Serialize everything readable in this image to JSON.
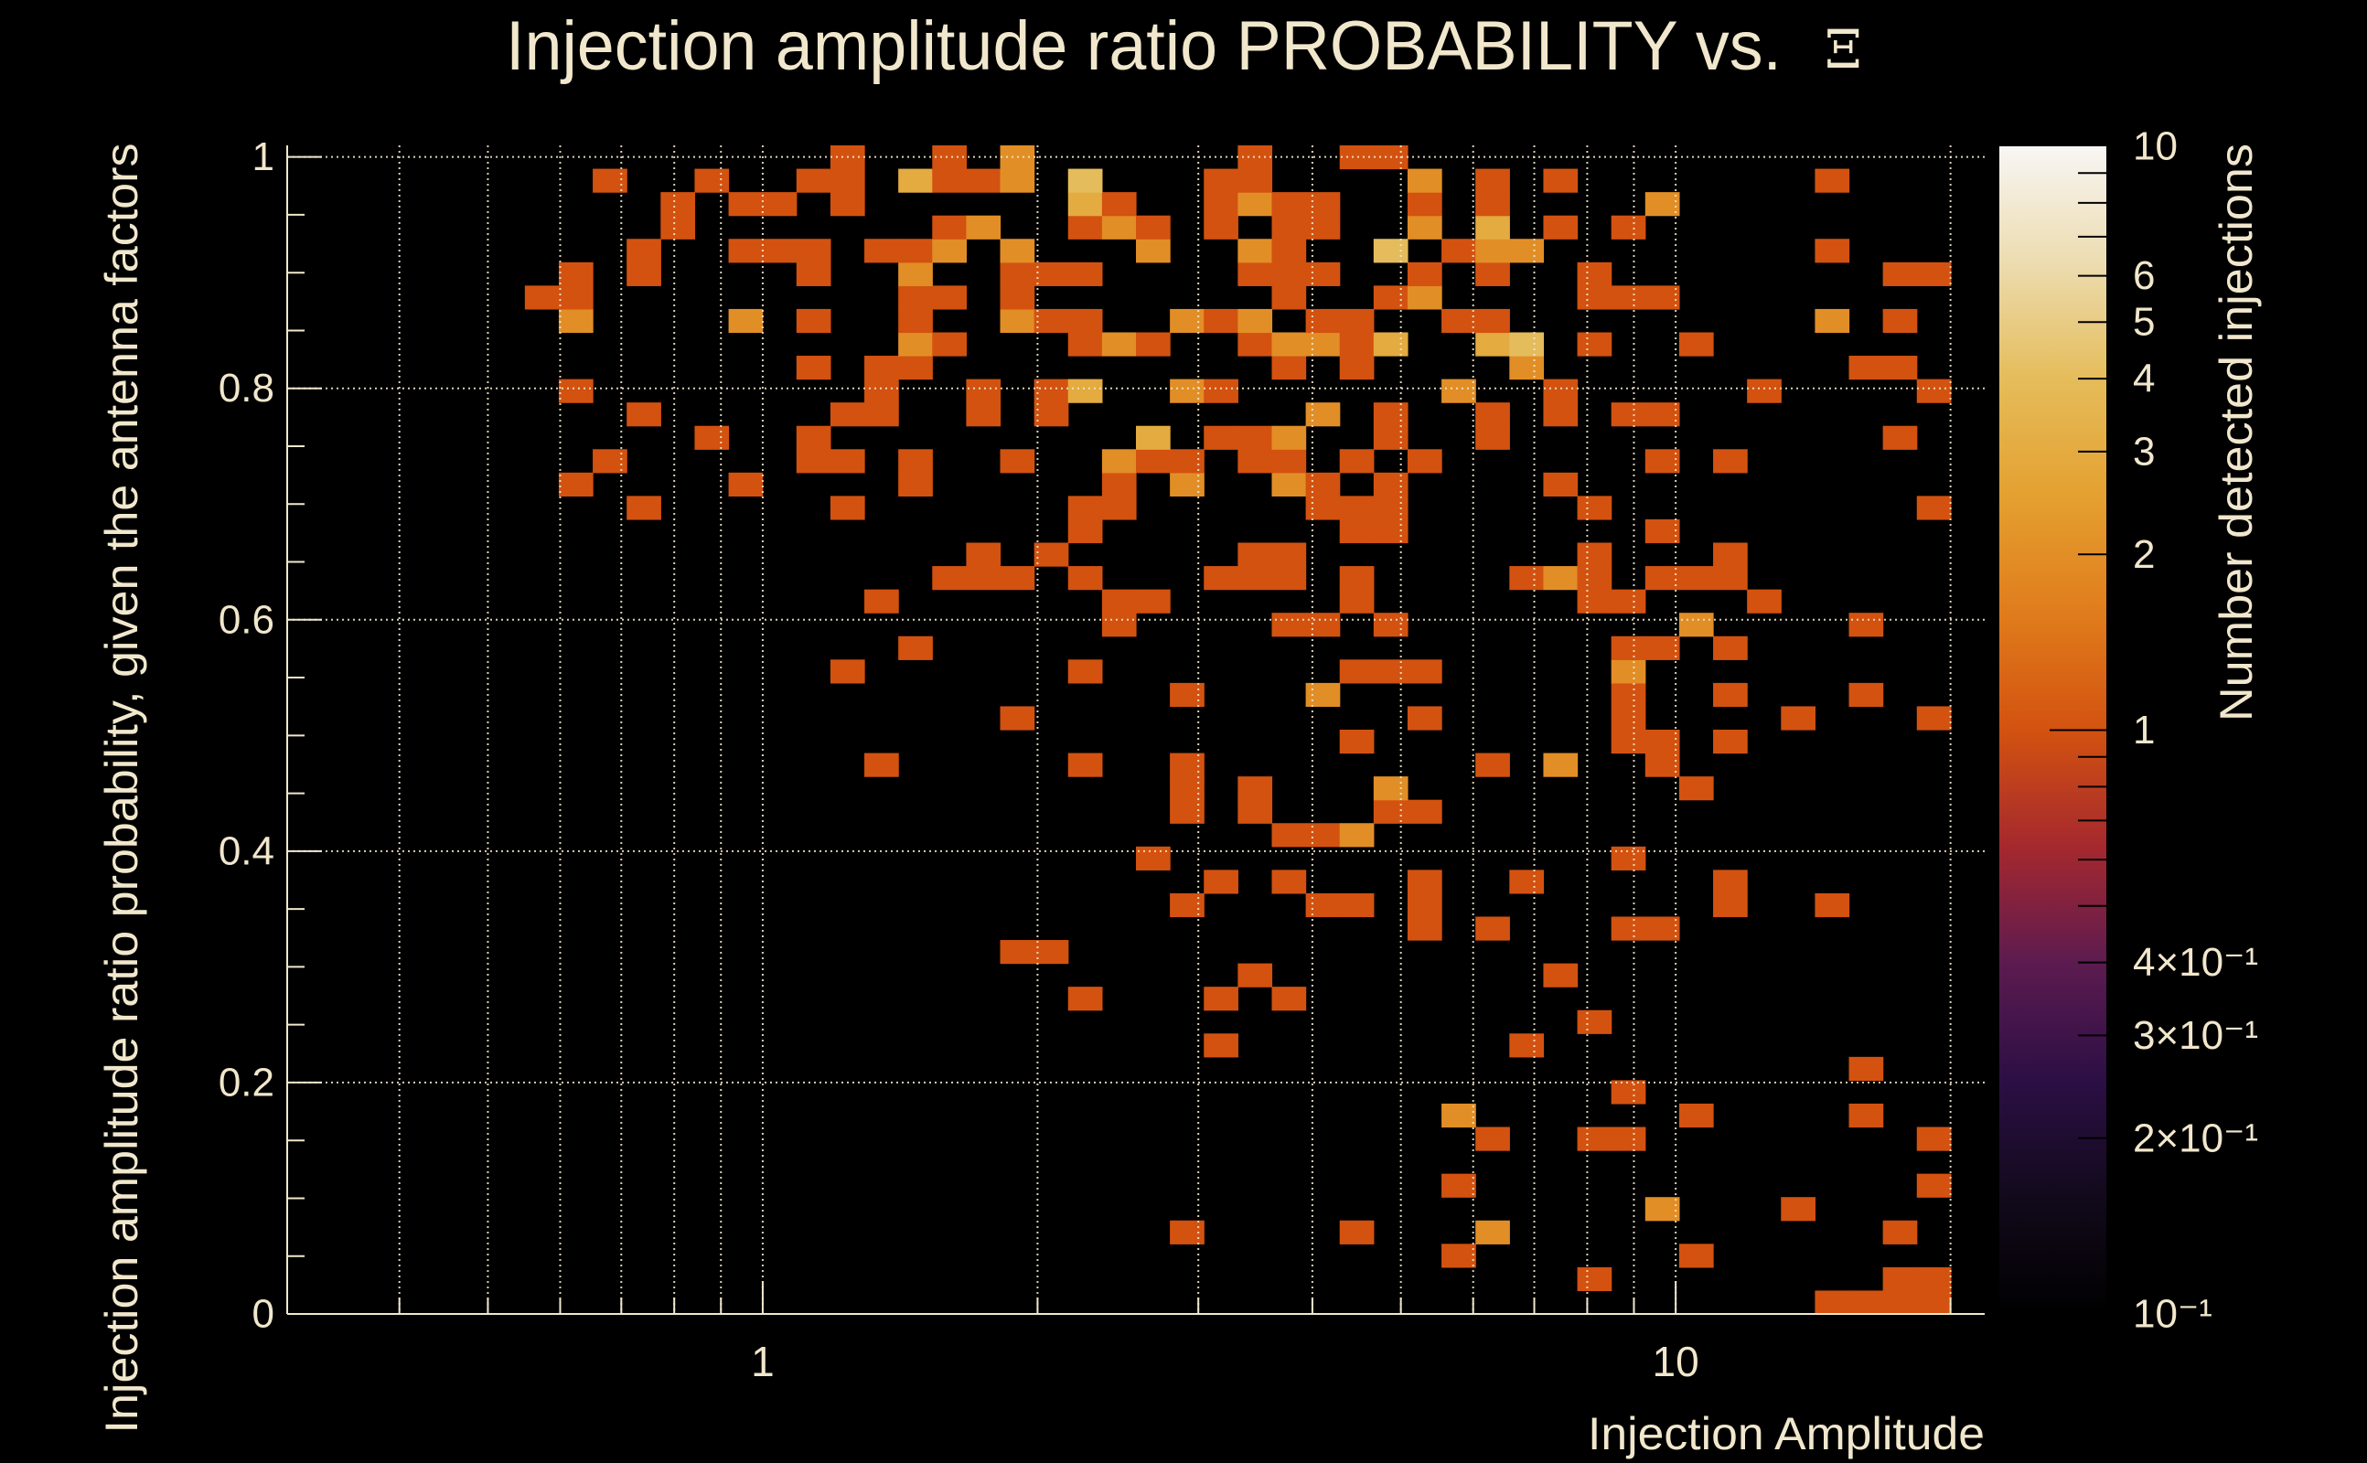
{
  "chart_data": {
    "type": "heatmap",
    "title": "Injection amplitude ratio PROBABILITY vs.",
    "title_symbol": "Ξ",
    "xlabel": "Injection Amplitude",
    "ylabel": "Injection amplitude ratio probability, given the antenna factors",
    "zlabel": "Number detected injections",
    "x_scale": "log",
    "x_range": [
      0.3014,
      21.8
    ],
    "y_range": [
      0,
      1.01
    ],
    "z_scale": "log",
    "z_range": [
      0.1,
      10
    ],
    "x_bins": 50,
    "y_bins": 50,
    "grid": true,
    "x_major_ticks": [
      {
        "value": 1,
        "label": "1"
      },
      {
        "value": 10,
        "label": "10"
      }
    ],
    "x_minor_ticks": [
      0.4,
      0.5,
      0.6,
      0.7,
      0.8,
      0.9,
      2,
      3,
      4,
      5,
      6,
      7,
      8,
      9,
      20
    ],
    "y_ticks": [
      {
        "value": 0,
        "label": "0"
      },
      {
        "value": 0.2,
        "label": "0.2"
      },
      {
        "value": 0.4,
        "label": "0.4"
      },
      {
        "value": 0.6,
        "label": "0.6"
      },
      {
        "value": 0.8,
        "label": "0.8"
      },
      {
        "value": 1,
        "label": "1"
      }
    ],
    "z_ticks": [
      {
        "value": 10,
        "label": "10"
      },
      {
        "value": 6,
        "label": "6"
      },
      {
        "value": 5,
        "label": "5"
      },
      {
        "value": 4,
        "label": "4"
      },
      {
        "value": 3,
        "label": "3"
      },
      {
        "value": 2,
        "label": "2"
      },
      {
        "value": 1,
        "label": "1"
      },
      {
        "value": 0.4,
        "label": "4×10⁻¹"
      },
      {
        "value": 0.3,
        "label": "3×10⁻¹"
      },
      {
        "value": 0.2,
        "label": "2×10⁻¹"
      },
      {
        "value": 0.1,
        "label": "10⁻¹"
      }
    ],
    "palette": [
      "#000000",
      "#120a1c",
      "#2c0f45",
      "#5c1b50",
      "#a5282e",
      "#d35210",
      "#e07c1c",
      "#e4a030",
      "#e5bc5a",
      "#ecdcb0",
      "#f8f6f4"
    ],
    "cell_encoding": "key = y bin index (0 = bottom); entries = x bin index (0 = left), optional ':count' (default count 1)",
    "cells_by_ybin": {
      "49": "16 19 21:2 28 31 32",
      "48": "9 12 15 16 18:3 19 20 21:2 23:4 27 28 33:2 35 37 45",
      "47": "11 13 14 16 23:3 24 27 28:2 29 30 33 35 40:2",
      "46": "11 19 20:2 23 24:2 25 27 29 30 33:2 35:3 37 39",
      "45": "10 13 14 15 17 18 19:2 21:2 25:2 28:2 29 32:4 34 35:2 36:2 45",
      "44": "8 10 15 18:2 21 22 23 28 29 30 33 35 38 47 48",
      "43": "7 8 18 19 21 29 32 33:2 38 39 40",
      "42": "8:2 13:2 15 18 21:2 22 23 26:2 27 28:2 30 31 34 35 45:2 47",
      "41": "18:2 19 23 24:2 25 28 29:2 30:2 31 32:3 35:3 36:4 38 41",
      "40": "15 17 18 29 31 36:2 46 47",
      "39": "8 17 20 22 23:3 26:2 27 34:2 37 43 48",
      "38": "10 16 17 20 22 30:2 32 35 37 39 40",
      "37": "12 15 25:3 27 28 29:2 32 35 47",
      "36": "9 15 16 18 21 24:2 25 26 28 29 31 33 40 42",
      "35": "8 13 18 24 26:2 29:2 30 32 37",
      "34": "10 16 23 24 30 31 32 38 48",
      "33": "23 31 32 40",
      "32": "20 22 28 29 38 42",
      "31": "19 20 21 23 27 28 29 31 36 37:2 38 40 41 42",
      "30": "17 24 25 31 38 39 43",
      "29": "24 29 30 32 41:2 46",
      "28": "18 39 40 42",
      "27": "16 23 31 32 33 39:2",
      "26": "26 30:2 39 42 46",
      "25": "21 33 39 44 48",
      "24": "31 39 40 42",
      "23": "17 23 26 35 37:2 40",
      "22": "26 28 32:2 41",
      "21": "26 28 32 33",
      "20": "29 30 31:2",
      "19": "25 39",
      "18": "27 29 33 36 42",
      "17": "26 30 31 33 42 45",
      "16": "33 35 39 40",
      "15": "21 22",
      "14": "28 37",
      "13": "23 27 29",
      "12": "38",
      "11": "27 36",
      "10": "46",
      "9": "39",
      "8": "34:2 41 46",
      "7": "35 38 39 48",
      "5": "34 48",
      "4": "40:2 44",
      "3": "26 31 35:2 47",
      "2": "34 41",
      "1": "38 47 48",
      "0": "45 46 47 48"
    }
  },
  "colors": {
    "text": "#f1e7cc",
    "background": "#000000"
  }
}
